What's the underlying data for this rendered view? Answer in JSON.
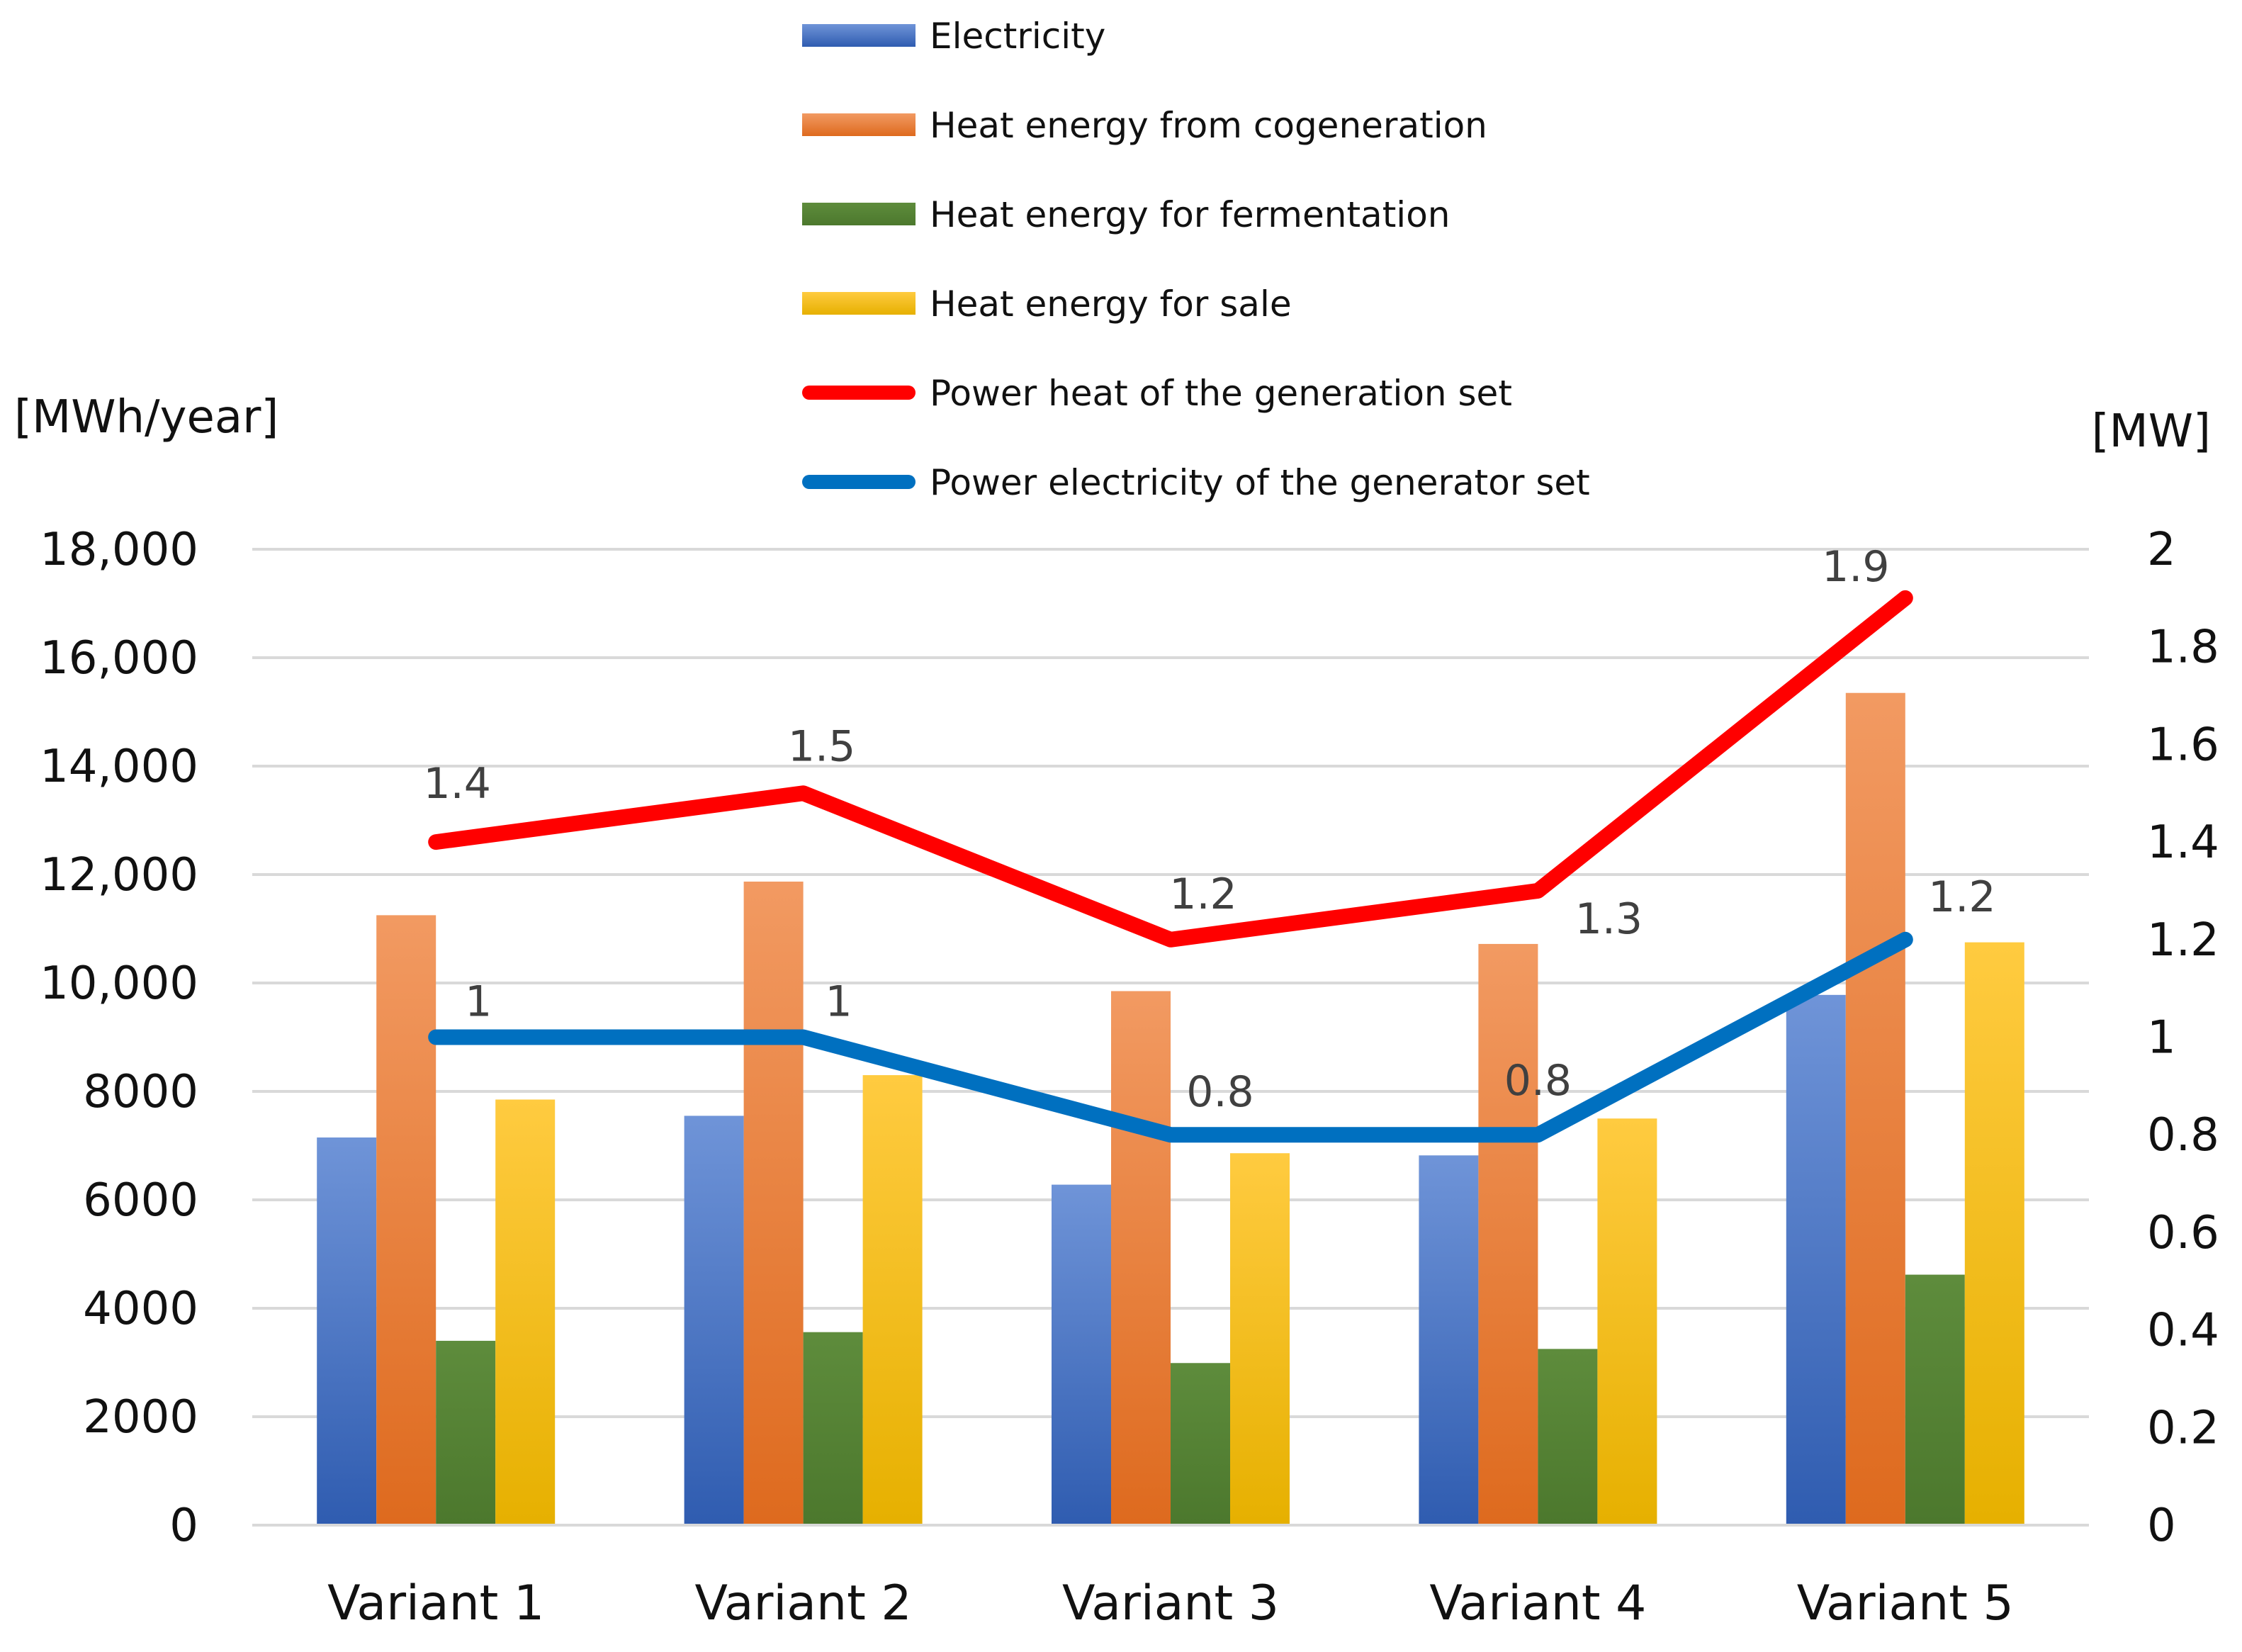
{
  "chart_data": {
    "type": "bar",
    "categories": [
      "Variant 1",
      "Variant 2",
      "Variant 3",
      "Variant 4",
      "Variant 5"
    ],
    "series": [
      {
        "name": "Electricity",
        "kind": "bar",
        "axis": "left",
        "color": "#4472C4",
        "values": [
          7150,
          7550,
          6280,
          6820,
          9780
        ]
      },
      {
        "name": "Heat energy from cogeneration",
        "kind": "bar",
        "axis": "left",
        "color": "#ED7D31",
        "values": [
          11250,
          11870,
          9850,
          10720,
          15350
        ]
      },
      {
        "name": "Heat energy for fermentation",
        "kind": "bar",
        "axis": "left",
        "color": "#548235",
        "values": [
          3400,
          3560,
          2990,
          3250,
          4620
        ]
      },
      {
        "name": "Heat energy for sale",
        "kind": "bar",
        "axis": "left",
        "color": "#FFC000",
        "values": [
          7850,
          8300,
          6860,
          7500,
          10750
        ]
      },
      {
        "name": "Power heat of the generation set",
        "kind": "line",
        "axis": "right",
        "color": "#FF0000",
        "values": [
          1.4,
          1.5,
          1.2,
          1.3,
          1.9
        ],
        "labels": [
          "1.4",
          "1.5",
          "1.2",
          "1.3",
          "1.9"
        ]
      },
      {
        "name": "Power electricity of the generator set",
        "kind": "line",
        "axis": "right",
        "color": "#0070C0",
        "values": [
          1,
          1,
          0.8,
          0.8,
          1.2
        ],
        "labels": [
          "1",
          "1",
          "0.8",
          "0.8",
          "1.2"
        ]
      }
    ],
    "y_left": {
      "label": "[MWh/year]",
      "min": 0,
      "max": 18000,
      "ticks": [
        "0",
        "2000",
        "4000",
        "6000",
        "8000",
        "10,000",
        "12,000",
        "14,000",
        "16,000",
        "18,000"
      ]
    },
    "y_right": {
      "label": "[MW]",
      "min": 0,
      "max": 2,
      "ticks": [
        "0",
        "0.2",
        "0.4",
        "0.6",
        "0.8",
        "1",
        "1.2",
        "1.4",
        "1.6",
        "1.8",
        "2"
      ]
    },
    "grid": true,
    "legend_position": "top-center"
  }
}
